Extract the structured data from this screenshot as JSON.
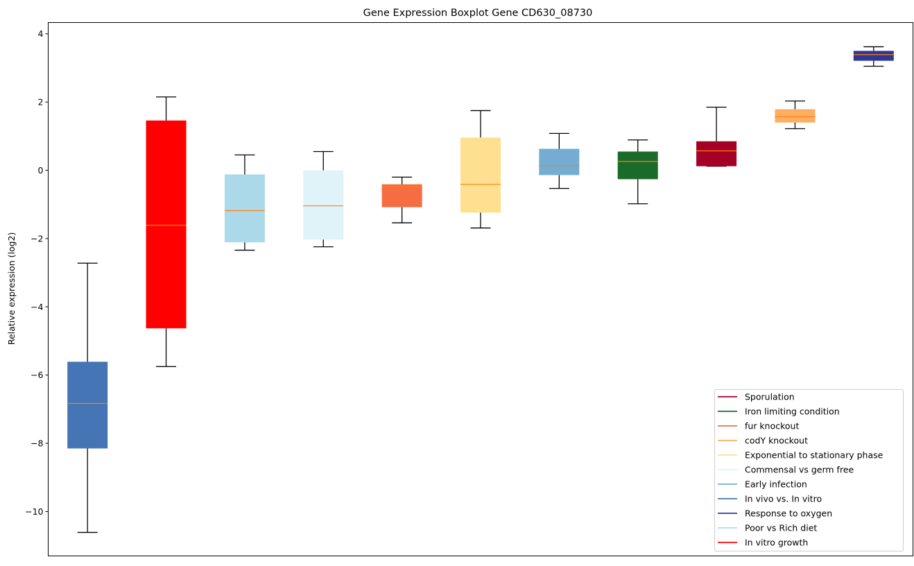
{
  "chart_data": {
    "type": "boxplot",
    "title": "Gene Expression Boxplot Gene CD630_08730",
    "xlabel": "",
    "ylabel": "Relative expression (log2)",
    "ylim": [
      -11.3,
      4.33
    ],
    "yticks": [
      4,
      2,
      0,
      -2,
      -4,
      -6,
      -8,
      -10
    ],
    "grid": false,
    "legend_position": "bottom-right",
    "median_color": "#ff7f0e",
    "boxes": [
      {
        "name": "In vivo vs. In vitro",
        "color": "#4575b4",
        "whislo": -10.61,
        "q1": -8.15,
        "med": -6.83,
        "q3": -5.61,
        "whishi": -2.72
      },
      {
        "name": "In vitro growth",
        "color": "#ff0000",
        "whislo": -5.75,
        "q1": -4.63,
        "med": -1.61,
        "q3": 1.46,
        "whishi": 2.15
      },
      {
        "name": "Poor vs Rich diet",
        "color": "#abd9e9",
        "whislo": -2.34,
        "q1": -2.11,
        "med": -1.18,
        "q3": -0.12,
        "whishi": 0.45
      },
      {
        "name": "Commensal vs germ free",
        "color": "#e0f3f8",
        "whislo": -2.24,
        "q1": -2.03,
        "med": -1.04,
        "q3": 0.0,
        "whishi": 0.55
      },
      {
        "name": "fur knockout",
        "color": "#f46d43",
        "whislo": -1.54,
        "q1": -1.08,
        "med": -0.48,
        "q3": -0.41,
        "whishi": -0.2
      },
      {
        "name": "Exponential to stationary phase",
        "color": "#fee090",
        "whislo": -1.69,
        "q1": -1.24,
        "med": -0.41,
        "q3": 0.96,
        "whishi": 1.75
      },
      {
        "name": "Early infection",
        "color": "#74add1",
        "whislo": -0.53,
        "q1": -0.14,
        "med": 0.14,
        "q3": 0.63,
        "whishi": 1.08
      },
      {
        "name": "Iron limiting condition",
        "color": "#1a6b2a",
        "whislo": -0.98,
        "q1": -0.26,
        "med": 0.26,
        "q3": 0.55,
        "whishi": 0.89
      },
      {
        "name": "Sporulation",
        "color": "#a50026",
        "whislo": 0.12,
        "q1": 0.12,
        "med": 0.57,
        "q3": 0.85,
        "whishi": 1.85
      },
      {
        "name": "codY knockout",
        "color": "#fdae61",
        "whislo": 1.22,
        "q1": 1.4,
        "med": 1.57,
        "q3": 1.79,
        "whishi": 2.03
      },
      {
        "name": "Response to oxygen",
        "color": "#313695",
        "whislo": 3.05,
        "q1": 3.21,
        "med": 3.39,
        "q3": 3.5,
        "whishi": 3.62
      }
    ],
    "legend": [
      {
        "label": "Sporulation",
        "color": "#a50026"
      },
      {
        "label": "Iron limiting condition",
        "color": "#1a6b2a"
      },
      {
        "label": "fur knockout",
        "color": "#f46d43"
      },
      {
        "label": "codY knockout",
        "color": "#fdae61"
      },
      {
        "label": "Exponential to stationary phase",
        "color": "#fee090"
      },
      {
        "label": "Commensal vs germ free",
        "color": "#e0f3f8"
      },
      {
        "label": "Early infection",
        "color": "#74add1"
      },
      {
        "label": "In vivo vs. In vitro",
        "color": "#4575b4"
      },
      {
        "label": "Response to oxygen",
        "color": "#313695"
      },
      {
        "label": "Poor vs Rich diet",
        "color": "#abd9e9"
      },
      {
        "label": "In vitro growth",
        "color": "#ff0000"
      }
    ]
  }
}
